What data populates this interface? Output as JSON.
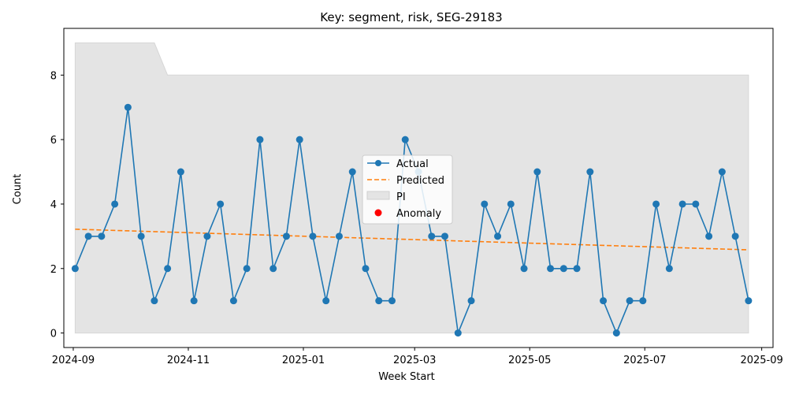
{
  "chart_data": {
    "type": "line",
    "title": "Key: segment, risk, SEG-29183",
    "xlabel": "Week Start",
    "ylabel": "Count",
    "x_ticks": [
      "2024-09",
      "2024-11",
      "2025-01",
      "2025-03",
      "2025-05",
      "2025-07",
      "2025-09"
    ],
    "y_ticks": [
      "0",
      "2",
      "4",
      "6",
      "8"
    ],
    "xlim": [
      "2024-08-27",
      "2025-09-07"
    ],
    "ylim": [
      -0.45,
      9.45
    ],
    "grid": false,
    "legend": {
      "placement": "center",
      "entries": [
        "Actual",
        "Predicted",
        "PI",
        "Anomaly"
      ]
    },
    "colors": {
      "actual": "#1f77b4",
      "predicted": "#ff7f0e",
      "pi": "#e4e4e4",
      "anomaly": "#ff0000"
    },
    "series": [
      {
        "name": "Actual",
        "x": [
          "2024-09-02",
          "2024-09-09",
          "2024-09-16",
          "2024-09-23",
          "2024-09-30",
          "2024-10-07",
          "2024-10-14",
          "2024-10-21",
          "2024-10-28",
          "2024-11-04",
          "2024-11-11",
          "2024-11-18",
          "2024-11-25",
          "2024-12-02",
          "2024-12-09",
          "2024-12-16",
          "2024-12-23",
          "2024-12-30",
          "2025-01-06",
          "2025-01-13",
          "2025-01-20",
          "2025-01-27",
          "2025-02-03",
          "2025-02-10",
          "2025-02-17",
          "2025-02-24",
          "2025-03-03",
          "2025-03-10",
          "2025-03-17",
          "2025-03-24",
          "2025-03-31",
          "2025-04-07",
          "2025-04-14",
          "2025-04-21",
          "2025-04-28",
          "2025-05-05",
          "2025-05-12",
          "2025-05-19",
          "2025-05-26",
          "2025-06-02",
          "2025-06-09",
          "2025-06-16",
          "2025-06-23",
          "2025-06-30",
          "2025-07-07",
          "2025-07-14",
          "2025-07-21",
          "2025-07-28",
          "2025-08-04",
          "2025-08-11",
          "2025-08-18",
          "2025-08-25"
        ],
        "values": [
          2,
          3,
          3,
          4,
          7,
          3,
          1,
          2,
          5,
          1,
          3,
          4,
          1,
          2,
          6,
          2,
          3,
          6,
          3,
          1,
          3,
          5,
          2,
          1,
          1,
          6,
          5,
          3,
          3,
          0,
          1,
          4,
          3,
          4,
          2,
          5,
          2,
          2,
          2,
          5,
          1,
          0,
          1,
          1,
          4,
          2,
          4,
          4,
          3,
          5,
          3,
          1
        ]
      },
      {
        "name": "Predicted",
        "x": [
          "2024-09-02",
          "2025-08-25"
        ],
        "values": [
          3.22,
          2.58
        ]
      }
    ],
    "pi": {
      "name": "PI",
      "x": [
        "2024-09-02",
        "2024-10-14",
        "2024-10-21",
        "2025-08-25"
      ],
      "lower": [
        0,
        0,
        0,
        0
      ],
      "upper": [
        9,
        9,
        8,
        8
      ]
    },
    "anomalies": []
  }
}
